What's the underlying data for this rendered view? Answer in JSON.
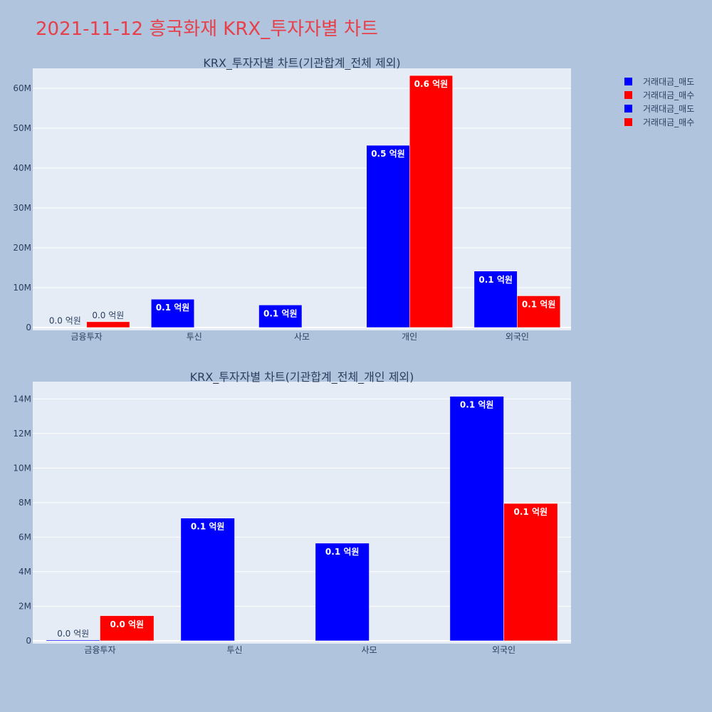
{
  "page_title": "2021-11-12 흥국화재 KRX_투자자별 차트",
  "legend": [
    {
      "label": "거래대금_매도",
      "color": "#0000ff"
    },
    {
      "label": "거래대금_매수",
      "color": "#ff0000"
    },
    {
      "label": "거래대금_매도",
      "color": "#0000ff"
    },
    {
      "label": "거래대금_매수",
      "color": "#ff0000"
    }
  ],
  "chart_data": [
    {
      "type": "bar",
      "title": "KRX_투자자별 차트(기관합계_전체 제외)",
      "categories": [
        "금융투자",
        "투신",
        "사모",
        "개인",
        "외국인"
      ],
      "ylim": [
        0,
        65000000
      ],
      "yticks": [
        0,
        10000000,
        20000000,
        30000000,
        40000000,
        50000000,
        60000000
      ],
      "ytick_labels": [
        "0",
        "10M",
        "20M",
        "30M",
        "40M",
        "50M",
        "60M"
      ],
      "grid": true,
      "series": [
        {
          "name": "거래대금_매도",
          "color": "#0000ff",
          "values": [
            50000,
            7100000,
            5650000,
            45700000,
            14150000
          ],
          "labels": [
            "0.0 억원",
            "0.1 억원",
            "0.1 억원",
            "0.5 억원",
            "0.1 억원"
          ]
        },
        {
          "name": "거래대금_매수",
          "color": "#ff0000",
          "values": [
            1450000,
            0,
            0,
            63200000,
            7950000
          ],
          "labels": [
            "0.0 억원",
            "",
            "",
            "0.6 억원",
            "0.1 억원"
          ]
        }
      ]
    },
    {
      "type": "bar",
      "title": "KRX_투자자별 차트(기관합계_전체_개인 제외)",
      "categories": [
        "금융투자",
        "투신",
        "사모",
        "외국인"
      ],
      "ylim": [
        0,
        15000000
      ],
      "yticks": [
        0,
        2000000,
        4000000,
        6000000,
        8000000,
        10000000,
        12000000,
        14000000
      ],
      "ytick_labels": [
        "0",
        "2M",
        "4M",
        "6M",
        "8M",
        "10M",
        "12M",
        "14M"
      ],
      "grid": true,
      "series": [
        {
          "name": "거래대금_매도",
          "color": "#0000ff",
          "values": [
            50000,
            7100000,
            5650000,
            14150000
          ],
          "labels": [
            "0.0 억원",
            "0.1 억원",
            "0.1 억원",
            "0.1 억원"
          ]
        },
        {
          "name": "거래대금_매수",
          "color": "#ff0000",
          "values": [
            1450000,
            0,
            0,
            7950000
          ],
          "labels": [
            "0.0 억원",
            "",
            "",
            "0.1 억원"
          ]
        }
      ]
    }
  ]
}
